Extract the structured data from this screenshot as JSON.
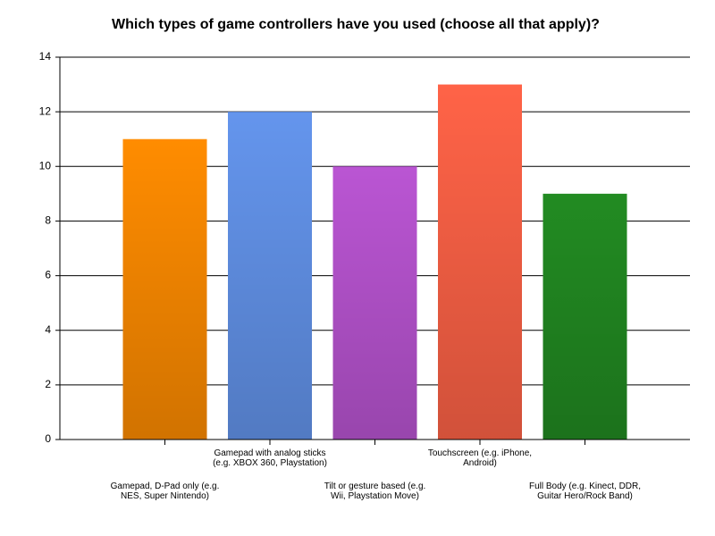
{
  "chart_data": {
    "type": "bar",
    "title": "Which types of game controllers have you used (choose all that apply)?",
    "categories": [
      "Gamepad, D-Pad only (e.g. NES, Super Nintendo)",
      "Gamepad with analog sticks (e.g. XBOX 360, Playstation)",
      "Tilt or gesture based (e.g. Wii, Playstation Move)",
      "Touchscreen (e.g. iPhone, Android)",
      "Full Body (e.g. Kinect, DDR, Guitar Hero/Rock Band)"
    ],
    "values": [
      11,
      12,
      10,
      13,
      9
    ],
    "colors": [
      "#ff8c00",
      "#6495ed",
      "#ba55d3",
      "#ff6347",
      "#228b22"
    ],
    "ylim": [
      0,
      14
    ],
    "yticks": [
      0,
      2,
      4,
      6,
      8,
      10,
      12,
      14
    ],
    "grid": true
  }
}
